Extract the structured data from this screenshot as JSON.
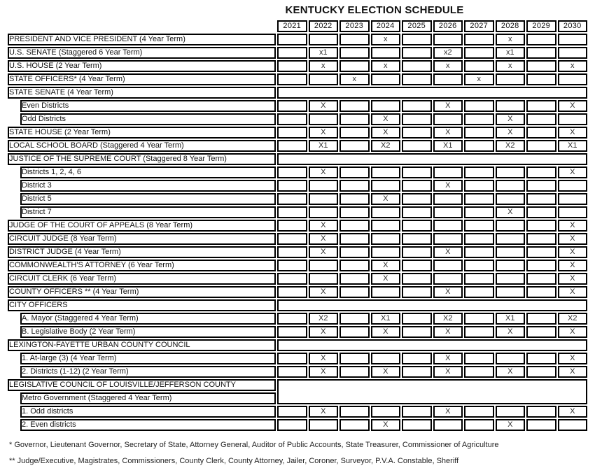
{
  "title": "KENTUCKY ELECTION SCHEDULE",
  "years": [
    "2021",
    "2022",
    "2023",
    "2024",
    "2025",
    "2026",
    "2027",
    "2028",
    "2029",
    "2030"
  ],
  "gray_years": [
    "2021",
    "2025",
    "2029"
  ],
  "colors": {
    "cell_border": "#000000",
    "nonelection_year_fill": "#c4c4c4",
    "background": "#ffffff"
  },
  "rows": [
    {
      "type": "data",
      "indent": false,
      "label": "PRESIDENT AND VICE PRESIDENT (4 Year Term)",
      "marks": {
        "2024": "x",
        "2028": "x"
      }
    },
    {
      "type": "data",
      "indent": false,
      "label": "U.S. SENATE (Staggered 6 Year Term)",
      "marks": {
        "2022": "x1",
        "2026": "x2",
        "2028": "x1"
      }
    },
    {
      "type": "data",
      "indent": false,
      "label": "U.S. HOUSE (2 Year Term)",
      "marks": {
        "2022": "x",
        "2024": "x",
        "2026": "x",
        "2028": "x",
        "2030": "x"
      }
    },
    {
      "type": "data",
      "indent": false,
      "label": "STATE OFFICERS* (4 Year Term)",
      "marks": {
        "2023": "x",
        "2027": "x"
      }
    },
    {
      "type": "section",
      "label": "STATE SENATE (4 Year Term)"
    },
    {
      "type": "data",
      "indent": true,
      "label": "Even Districts",
      "marks": {
        "2022": "X",
        "2026": "X",
        "2030": "X"
      }
    },
    {
      "type": "data",
      "indent": true,
      "label": "Odd Districts",
      "marks": {
        "2024": "X",
        "2028": "X"
      }
    },
    {
      "type": "data",
      "indent": false,
      "label": "STATE HOUSE (2 Year Term)",
      "marks": {
        "2022": "X",
        "2024": "X",
        "2026": "X",
        "2028": "X",
        "2030": "X"
      }
    },
    {
      "type": "data",
      "indent": false,
      "label": "LOCAL SCHOOL BOARD (Staggered 4 Year Term)",
      "marks": {
        "2022": "X1",
        "2024": "X2",
        "2026": "X1",
        "2028": "X2",
        "2030": "X1"
      }
    },
    {
      "type": "section",
      "label": "JUSTICE OF THE SUPREME COURT (Staggered 8 Year Term)"
    },
    {
      "type": "data",
      "indent": true,
      "label": "Districts 1, 2, 4, 6",
      "marks": {
        "2022": "X",
        "2030": "X"
      }
    },
    {
      "type": "data",
      "indent": true,
      "label": "District 3",
      "marks": {
        "2026": "X"
      }
    },
    {
      "type": "data",
      "indent": true,
      "label": "District 5",
      "marks": {
        "2024": "X"
      }
    },
    {
      "type": "data",
      "indent": true,
      "label": "District 7",
      "marks": {
        "2028": "X"
      }
    },
    {
      "type": "data",
      "indent": false,
      "label": "JUDGE OF THE COURT OF APPEALS (8 Year Term)",
      "marks": {
        "2022": "X",
        "2030": "X"
      }
    },
    {
      "type": "data",
      "indent": false,
      "label": "CIRCUIT JUDGE (8 Year Term)",
      "marks": {
        "2022": "X",
        "2030": "X"
      }
    },
    {
      "type": "data",
      "indent": false,
      "label": "DISTRICT JUDGE (4 Year Term)",
      "marks": {
        "2022": "X",
        "2026": "X",
        "2030": "X"
      }
    },
    {
      "type": "data",
      "indent": false,
      "label": "COMMONWEALTH'S ATTORNEY (6 Year Term)",
      "marks": {
        "2024": "X",
        "2030": "X"
      }
    },
    {
      "type": "data",
      "indent": false,
      "label": "CIRCUIT CLERK (6 Year Term)",
      "marks": {
        "2024": "X",
        "2030": "X"
      }
    },
    {
      "type": "data",
      "indent": false,
      "label": "COUNTY OFFICERS ** (4 Year Term)",
      "marks": {
        "2022": "X",
        "2026": "X",
        "2030": "X"
      }
    },
    {
      "type": "section",
      "label": "CITY OFFICERS"
    },
    {
      "type": "data",
      "indent": true,
      "label": "A. Mayor (Staggered 4 Year Term)",
      "marks": {
        "2022": "X2",
        "2024": "X1",
        "2026": "X2",
        "2028": "X1",
        "2030": "X2"
      }
    },
    {
      "type": "data",
      "indent": true,
      "label": "B. Legislative Body (2 Year Term)",
      "marks": {
        "2022": "X",
        "2024": "X",
        "2026": "X",
        "2028": "X",
        "2030": "X"
      }
    },
    {
      "type": "section",
      "label": "LEXINGTON-FAYETTE URBAN COUNTY COUNCIL"
    },
    {
      "type": "data",
      "indent": true,
      "label": "1. At-large (3) (4 Year Term)",
      "marks": {
        "2022": "X",
        "2026": "X",
        "2030": "X"
      }
    },
    {
      "type": "data",
      "indent": true,
      "label": "2. Districts (1-12) (2 Year Term)",
      "marks": {
        "2022": "X",
        "2024": "X",
        "2026": "X",
        "2028": "X",
        "2030": "X"
      }
    },
    {
      "type": "section2start",
      "label": "LEGISLATIVE COUNCIL OF LOUISVILLE/JEFFERSON COUNTY"
    },
    {
      "type": "subheader",
      "label": "Metro Government (Staggered 4 Year Term)"
    },
    {
      "type": "data",
      "indent": true,
      "label": "1. Odd districts",
      "marks": {
        "2022": "X",
        "2026": "X",
        "2030": "X"
      }
    },
    {
      "type": "data",
      "indent": true,
      "label": "2. Even districts",
      "marks": {
        "2024": "X",
        "2028": "X"
      }
    }
  ],
  "footnotes": [
    "* Governor, Lieutenant Governor, Secretary of State, Attorney General, Auditor of Public Accounts, State Treasurer, Commissioner of Agriculture",
    "** Judge/Executive, Magistrates, Commissioners, County Clerk, County Attorney, Jailer, Coroner, Surveyor, P.V.A. Constable, Sheriff"
  ]
}
